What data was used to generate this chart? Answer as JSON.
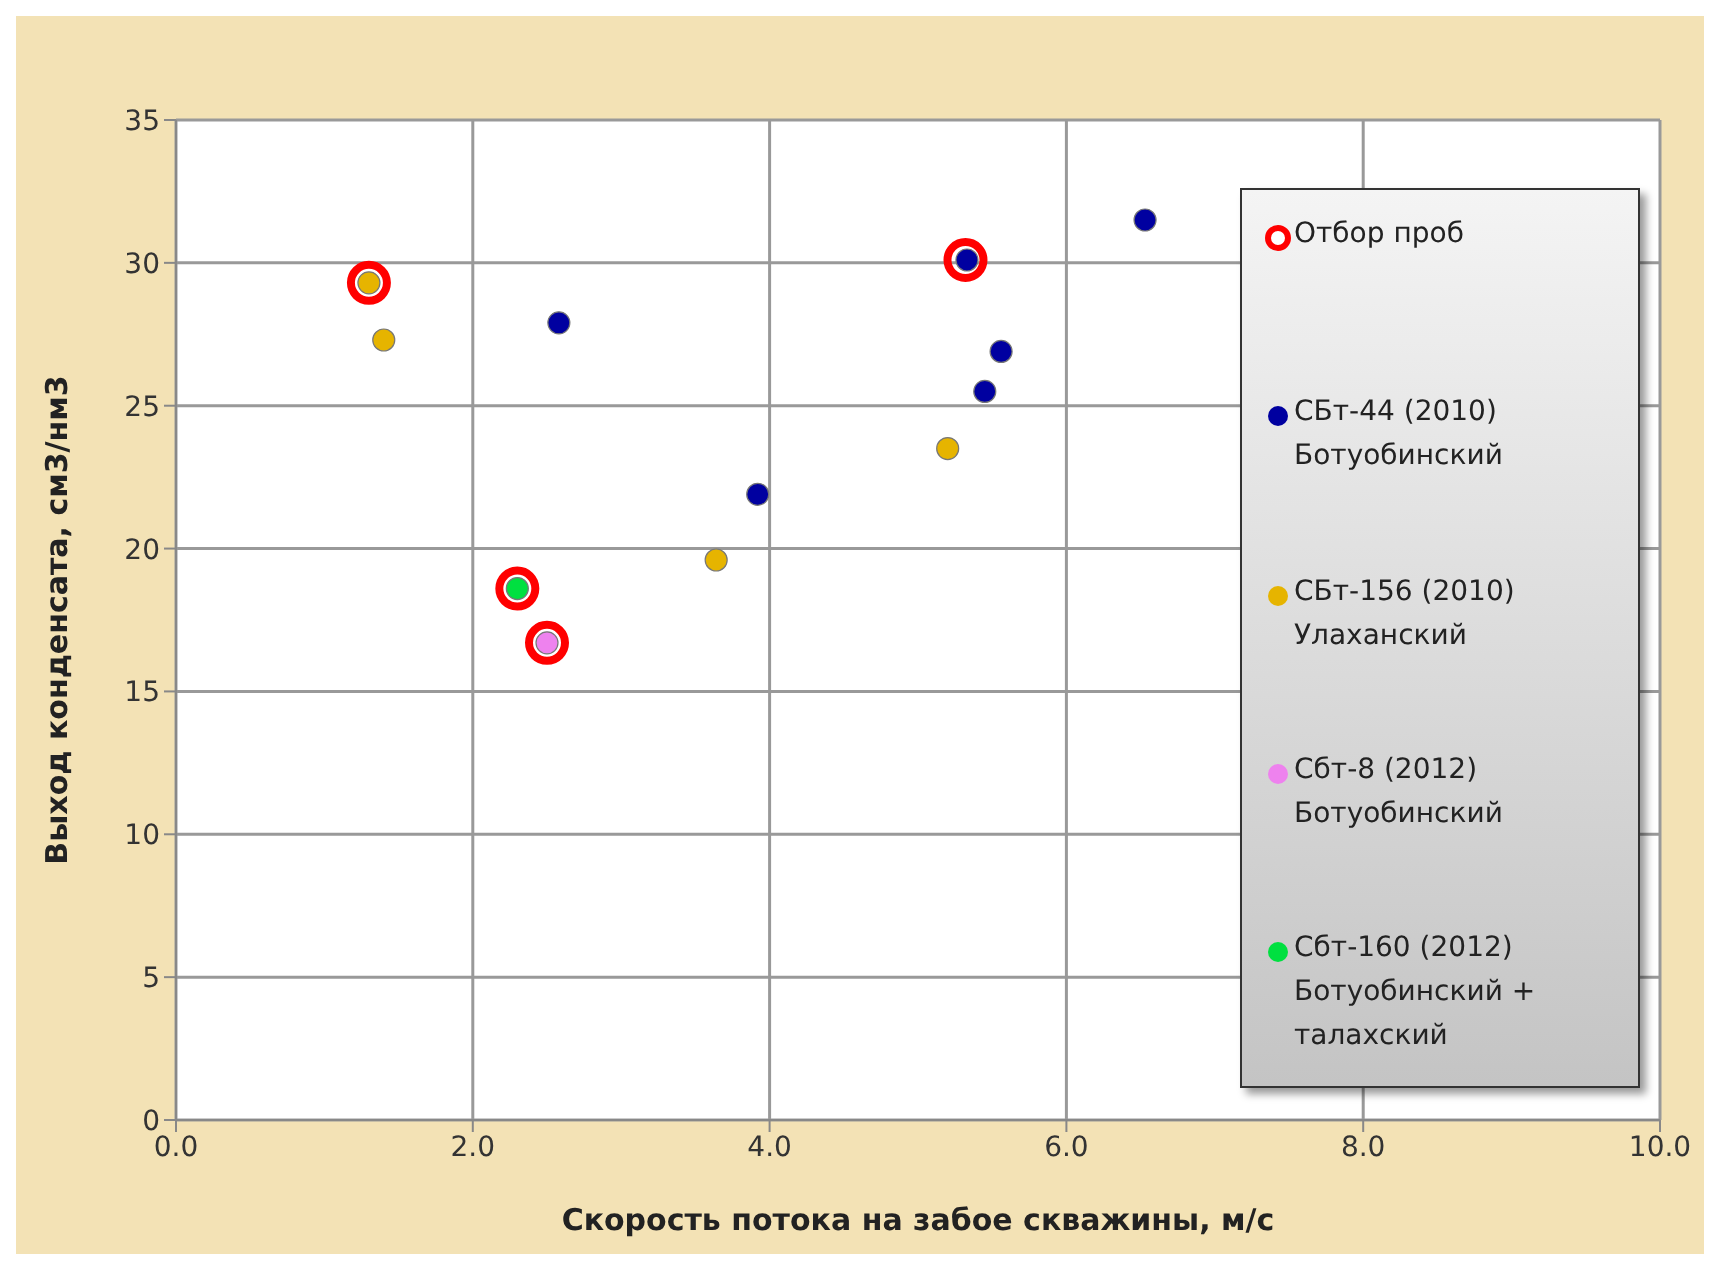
{
  "chart_data": {
    "type": "scatter",
    "xlabel": "Скорость потока на забое скважины, м/с",
    "ylabel": "Выход конденсата, см3/нм3",
    "xlim": [
      0,
      10
    ],
    "xticks": [
      {
        "value": 0,
        "label": "0.0"
      },
      {
        "value": 2,
        "label": "2.0"
      },
      {
        "value": 4,
        "label": "4.0"
      },
      {
        "value": 6,
        "label": "6.0"
      },
      {
        "value": 8,
        "label": "8.0"
      },
      {
        "value": 10,
        "label": "10.0"
      }
    ],
    "ylim": [
      0,
      35
    ],
    "yticks": [
      0,
      5,
      10,
      15,
      20,
      25,
      30,
      35
    ],
    "grid": true,
    "legend": "right",
    "marker": "circle",
    "series": [
      {
        "name": "Отбор проб",
        "color": "#ff0000",
        "x": [
          1.3,
          2.3,
          2.5,
          5.32
        ],
        "values": [
          29.3,
          18.6,
          16.7,
          30.1
        ]
      },
      {
        "name": "СБт-44 (2010) Ботуобинский",
        "color": "#0000a0",
        "x": [
          2.58,
          3.92,
          5.33,
          5.45,
          5.56,
          6.53
        ],
        "values": [
          27.9,
          21.9,
          30.1,
          25.5,
          26.9,
          31.5
        ]
      },
      {
        "name": "СБт-156 (2010) Улаханский",
        "color": "#e6b400",
        "x": [
          1.3,
          1.4,
          3.64,
          5.2
        ],
        "values": [
          29.3,
          27.3,
          19.6,
          23.5
        ]
      },
      {
        "name": "Сбт-8 (2012) Ботуобинский",
        "color": "#ee82ee",
        "x": [
          2.5
        ],
        "values": [
          16.7
        ]
      },
      {
        "name": "Сбт-160 (2012) Ботуобинский + талахский",
        "color": "#00e040",
        "x": [
          2.3
        ],
        "values": [
          18.6
        ]
      }
    ]
  }
}
